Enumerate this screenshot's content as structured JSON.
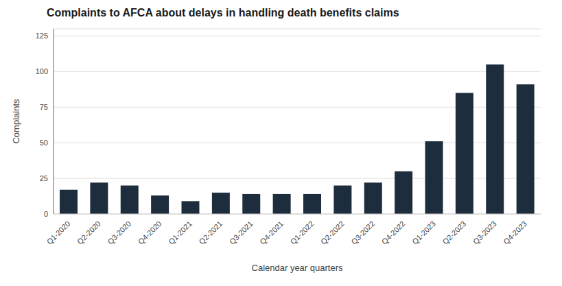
{
  "chart_data": {
    "type": "bar",
    "title": "Complaints to AFCA about delays in handling death benefits claims",
    "xlabel": "Calendar year quarters",
    "ylabel": "Complaints",
    "categories": [
      "Q1-2020",
      "Q2-2020",
      "Q3-2020",
      "Q4-2020",
      "Q1-2021",
      "Q2-2021",
      "Q3-2021",
      "Q4-2021",
      "Q1-2022",
      "Q2-2022",
      "Q3-2022",
      "Q4-2022",
      "Q1-2023",
      "Q2-2023",
      "Q3-2023",
      "Q4-2023"
    ],
    "values": [
      17,
      22,
      20,
      13,
      9,
      15,
      14,
      14,
      14,
      20,
      22,
      30,
      51,
      85,
      105,
      91
    ],
    "color": "#1e2d3d",
    "ylim": [
      0,
      130
    ],
    "yticks": [
      0,
      25,
      50,
      75,
      100,
      125
    ],
    "grid": true
  }
}
